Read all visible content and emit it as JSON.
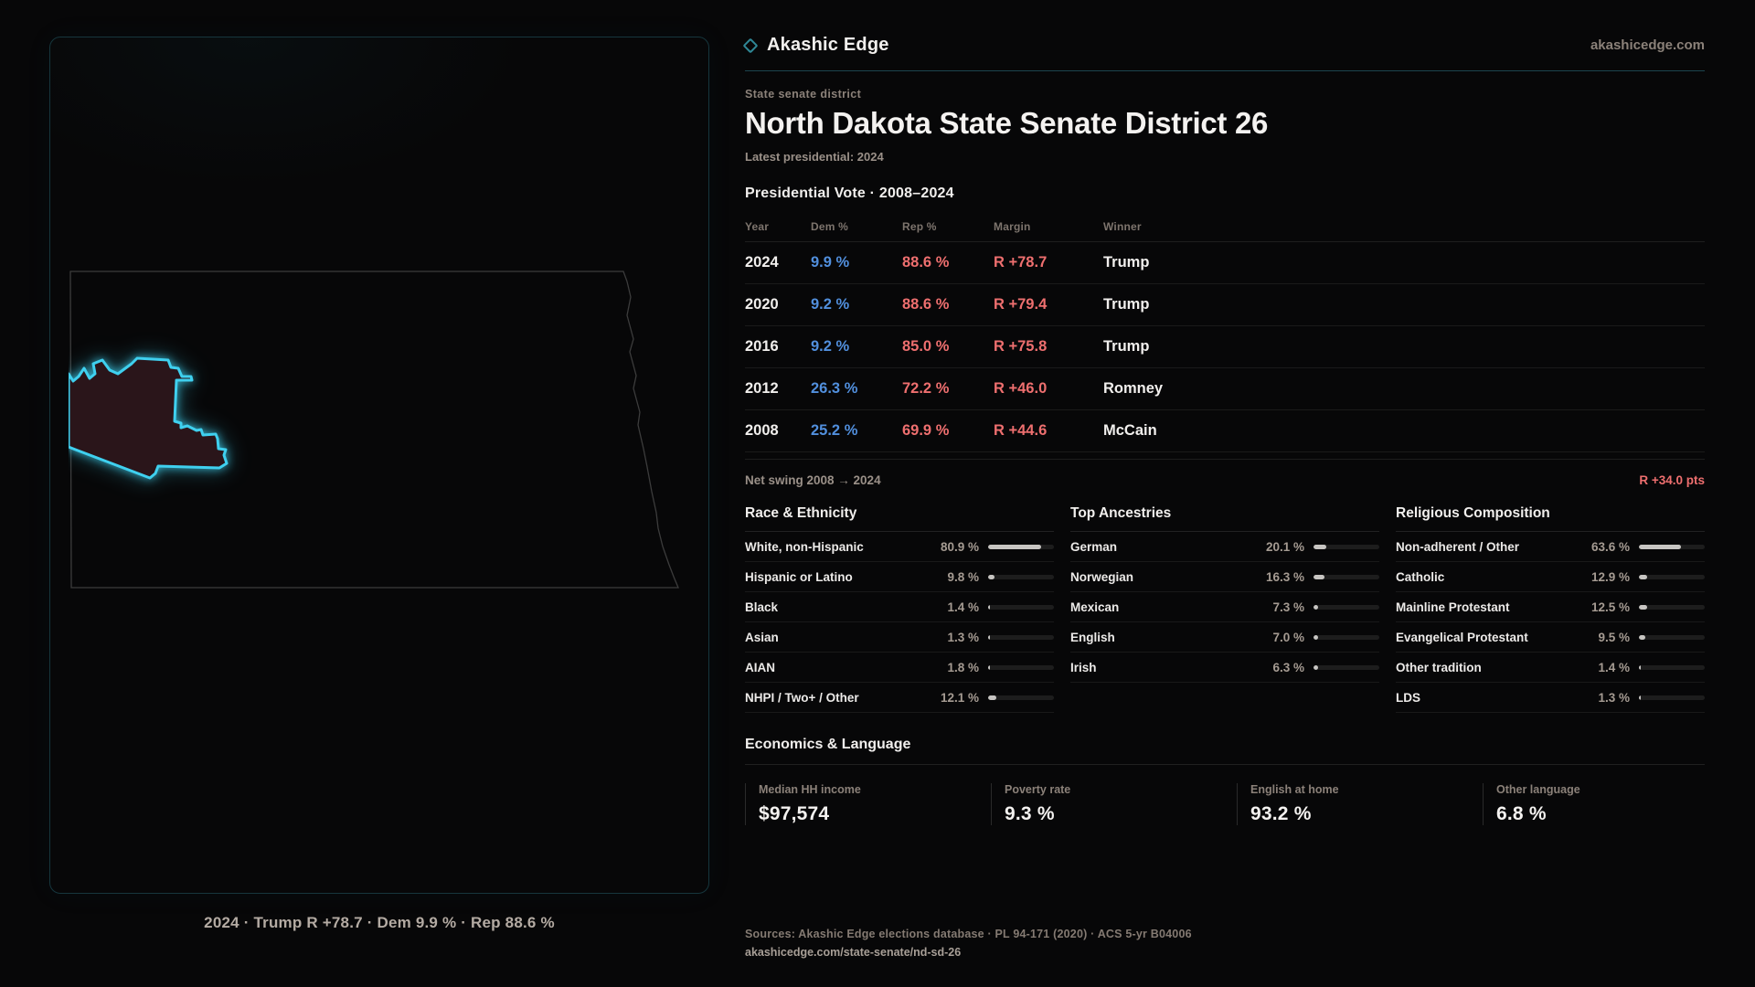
{
  "brand": {
    "name": "Akashic Edge",
    "domain": "akashicedge.com"
  },
  "header": {
    "eyebrow": "State senate district",
    "title": "North Dakota State Senate District 26",
    "subtitle": "Latest presidential: 2024"
  },
  "map_panel": {
    "caption": "2024 · Trump R +78.7 · Dem 9.9 % · Rep 88.6 %"
  },
  "vote_table": {
    "title": "Presidential Vote · 2008–2024",
    "columns": [
      "Year",
      "Dem %",
      "Rep %",
      "Margin",
      "Winner"
    ],
    "rows": [
      {
        "year": "2024",
        "dem": "9.9 %",
        "rep": "88.6 %",
        "margin": "R +78.7",
        "winner": "Trump"
      },
      {
        "year": "2020",
        "dem": "9.2 %",
        "rep": "88.6 %",
        "margin": "R +79.4",
        "winner": "Trump"
      },
      {
        "year": "2016",
        "dem": "9.2 %",
        "rep": "85.0 %",
        "margin": "R +75.8",
        "winner": "Trump"
      },
      {
        "year": "2012",
        "dem": "26.3 %",
        "rep": "72.2 %",
        "margin": "R +46.0",
        "winner": "Romney"
      },
      {
        "year": "2008",
        "dem": "25.2 %",
        "rep": "69.9 %",
        "margin": "R +44.6",
        "winner": "McCain"
      }
    ]
  },
  "net_swing": {
    "label": "Net swing 2008 → 2024",
    "value": "R +34.0 pts"
  },
  "demographics": {
    "race": {
      "title": "Race & Ethnicity",
      "rows": [
        {
          "label": "White, non-Hispanic",
          "value": "80.9 %",
          "pct": 80.9
        },
        {
          "label": "Hispanic or Latino",
          "value": "9.8 %",
          "pct": 9.8
        },
        {
          "label": "Black",
          "value": "1.4 %",
          "pct": 1.4
        },
        {
          "label": "Asian",
          "value": "1.3 %",
          "pct": 1.3
        },
        {
          "label": "AIAN",
          "value": "1.8 %",
          "pct": 1.8
        },
        {
          "label": "NHPI / Two+ / Other",
          "value": "12.1 %",
          "pct": 12.1
        }
      ]
    },
    "ancestries": {
      "title": "Top Ancestries",
      "rows": [
        {
          "label": "German",
          "value": "20.1 %",
          "pct": 20.1
        },
        {
          "label": "Norwegian",
          "value": "16.3 %",
          "pct": 16.3
        },
        {
          "label": "Mexican",
          "value": "7.3 %",
          "pct": 7.3
        },
        {
          "label": "English",
          "value": "7.0 %",
          "pct": 7.0
        },
        {
          "label": "Irish",
          "value": "6.3 %",
          "pct": 6.3
        }
      ]
    },
    "religion": {
      "title": "Religious Composition",
      "rows": [
        {
          "label": "Non-adherent / Other",
          "value": "63.6 %",
          "pct": 63.6
        },
        {
          "label": "Catholic",
          "value": "12.9 %",
          "pct": 12.9
        },
        {
          "label": "Mainline Protestant",
          "value": "12.5 %",
          "pct": 12.5
        },
        {
          "label": "Evangelical Protestant",
          "value": "9.5 %",
          "pct": 9.5
        },
        {
          "label": "Other tradition",
          "value": "1.4 %",
          "pct": 1.4
        },
        {
          "label": "LDS",
          "value": "1.3 %",
          "pct": 1.3
        }
      ]
    }
  },
  "economics": {
    "title": "Economics & Language",
    "cards": [
      {
        "label": "Median HH income",
        "value": "$97,574"
      },
      {
        "label": "Poverty rate",
        "value": "9.3 %"
      },
      {
        "label": "English at home",
        "value": "93.2 %"
      },
      {
        "label": "Other language",
        "value": "6.8 %"
      }
    ]
  },
  "footer": {
    "sources": "Sources: Akashic Edge elections database · PL 94-171 (2020) · ACS 5-yr B04006",
    "url": "akashicedge.com/state-senate/nd-sd-26"
  },
  "colors": {
    "background": "#070708",
    "dem_blue": "#518fdd",
    "rep_red": "#ee6f6f",
    "accent_teal": "#3fd0ef",
    "muted_text": "#8b8179",
    "district_fill": "#2a151a"
  }
}
